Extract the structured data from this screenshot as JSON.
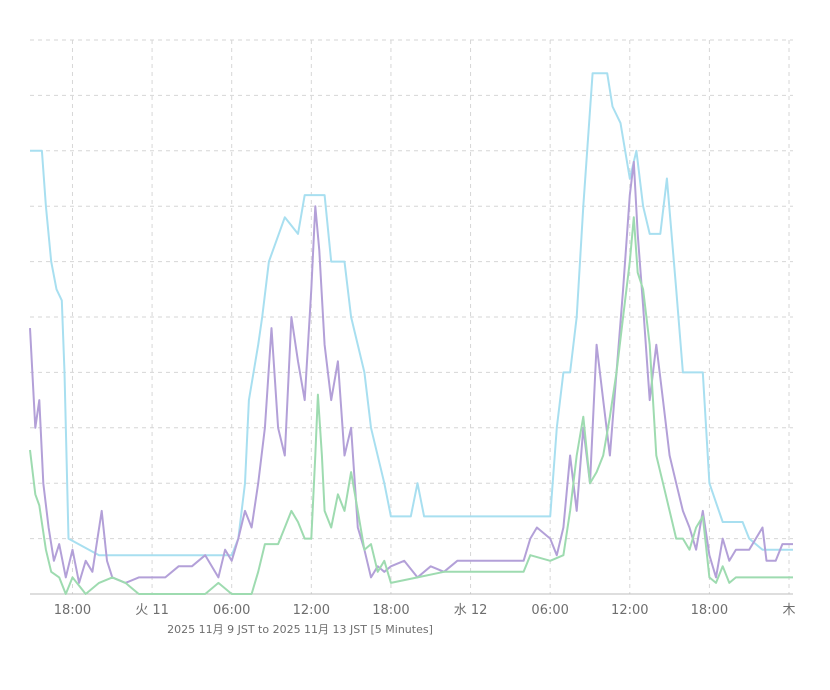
{
  "chart_data": {
    "type": "line",
    "title": "",
    "xlabel": "",
    "ylabel": "",
    "x_unit": "hours since 2025-11-10 18:00 JST",
    "xlim": [
      -3.2,
      54.3
    ],
    "ylim": [
      0,
      10
    ],
    "grid": true,
    "x_ticks": [
      {
        "x": 0,
        "label": "18:00"
      },
      {
        "x": 6,
        "label": "火 11"
      },
      {
        "x": 12,
        "label": "06:00"
      },
      {
        "x": 18,
        "label": "12:00"
      },
      {
        "x": 24,
        "label": "18:00"
      },
      {
        "x": 30,
        "label": "水 12"
      },
      {
        "x": 36,
        "label": "06:00"
      },
      {
        "x": 42,
        "label": "12:00"
      },
      {
        "x": 48,
        "label": "18:00"
      },
      {
        "x": 54,
        "label": "木"
      }
    ],
    "range_label": "2025 11月 9 JST to 2025 11月 13 JST   [5 Minutes]",
    "series": [
      {
        "color": "#a8dff0",
        "points": [
          [
            -3.2,
            8.0
          ],
          [
            -2.3,
            8.0
          ],
          [
            -2.0,
            7.0
          ],
          [
            -1.6,
            6.0
          ],
          [
            -1.2,
            5.5
          ],
          [
            -0.8,
            5.3
          ],
          [
            -0.6,
            4.0
          ],
          [
            -0.3,
            1.0
          ],
          [
            2.0,
            0.7
          ],
          [
            12.0,
            0.7
          ],
          [
            12.5,
            1.0
          ],
          [
            13.0,
            2.0
          ],
          [
            13.3,
            3.5
          ],
          [
            14.0,
            4.5
          ],
          [
            14.3,
            5.0
          ],
          [
            14.8,
            6.0
          ],
          [
            16.0,
            6.8
          ],
          [
            17.0,
            6.5
          ],
          [
            17.5,
            7.2
          ],
          [
            19.0,
            7.2
          ],
          [
            19.5,
            6.0
          ],
          [
            20.5,
            6.0
          ],
          [
            21.0,
            5.0
          ],
          [
            22.0,
            4.0
          ],
          [
            22.5,
            3.0
          ],
          [
            23.5,
            2.0
          ],
          [
            24.0,
            1.4
          ],
          [
            25.5,
            1.4
          ],
          [
            26.0,
            2.0
          ],
          [
            26.5,
            1.4
          ],
          [
            36.0,
            1.4
          ],
          [
            36.5,
            3.0
          ],
          [
            37.0,
            4.0
          ],
          [
            37.5,
            4.0
          ],
          [
            38.0,
            5.0
          ],
          [
            38.5,
            7.0
          ],
          [
            39.2,
            9.4
          ],
          [
            40.3,
            9.4
          ],
          [
            40.7,
            8.8
          ],
          [
            41.3,
            8.5
          ],
          [
            42.0,
            7.5
          ],
          [
            42.5,
            8.0
          ],
          [
            43.0,
            7.0
          ],
          [
            43.5,
            6.5
          ],
          [
            44.3,
            6.5
          ],
          [
            44.8,
            7.5
          ],
          [
            45.5,
            5.5
          ],
          [
            46.0,
            4.0
          ],
          [
            47.5,
            4.0
          ],
          [
            48.0,
            2.0
          ],
          [
            49.0,
            1.3
          ],
          [
            50.5,
            1.3
          ],
          [
            51.0,
            1.0
          ],
          [
            52.0,
            0.8
          ],
          [
            54.3,
            0.8
          ]
        ]
      },
      {
        "color": "#b3a0d8",
        "points": [
          [
            -3.2,
            4.8
          ],
          [
            -2.8,
            3.0
          ],
          [
            -2.5,
            3.5
          ],
          [
            -2.2,
            2.0
          ],
          [
            -1.8,
            1.2
          ],
          [
            -1.4,
            0.6
          ],
          [
            -1.0,
            0.9
          ],
          [
            -0.5,
            0.3
          ],
          [
            0.0,
            0.8
          ],
          [
            0.5,
            0.2
          ],
          [
            1.0,
            0.6
          ],
          [
            1.5,
            0.4
          ],
          [
            2.2,
            1.5
          ],
          [
            2.6,
            0.6
          ],
          [
            3.0,
            0.3
          ],
          [
            4.0,
            0.2
          ],
          [
            5.0,
            0.3
          ],
          [
            7.0,
            0.3
          ],
          [
            8.0,
            0.5
          ],
          [
            9.0,
            0.5
          ],
          [
            10.0,
            0.7
          ],
          [
            11.0,
            0.3
          ],
          [
            11.5,
            0.8
          ],
          [
            12.0,
            0.6
          ],
          [
            12.5,
            1.0
          ],
          [
            13.0,
            1.5
          ],
          [
            13.5,
            1.2
          ],
          [
            14.0,
            2.0
          ],
          [
            14.5,
            3.0
          ],
          [
            15.0,
            4.8
          ],
          [
            15.5,
            3.0
          ],
          [
            16.0,
            2.5
          ],
          [
            16.5,
            5.0
          ],
          [
            17.0,
            4.2
          ],
          [
            17.5,
            3.5
          ],
          [
            18.0,
            5.5
          ],
          [
            18.3,
            7.0
          ],
          [
            18.6,
            6.2
          ],
          [
            19.0,
            4.5
          ],
          [
            19.5,
            3.5
          ],
          [
            20.0,
            4.2
          ],
          [
            20.5,
            2.5
          ],
          [
            21.0,
            3.0
          ],
          [
            21.5,
            1.2
          ],
          [
            22.0,
            0.8
          ],
          [
            22.5,
            0.3
          ],
          [
            23.0,
            0.5
          ],
          [
            23.5,
            0.4
          ],
          [
            24.0,
            0.5
          ],
          [
            25.0,
            0.6
          ],
          [
            26.0,
            0.3
          ],
          [
            27.0,
            0.5
          ],
          [
            28.0,
            0.4
          ],
          [
            29.0,
            0.6
          ],
          [
            30.0,
            0.6
          ],
          [
            31.0,
            0.6
          ],
          [
            32.0,
            0.6
          ],
          [
            34.0,
            0.6
          ],
          [
            34.5,
            1.0
          ],
          [
            35.0,
            1.2
          ],
          [
            36.0,
            1.0
          ],
          [
            36.5,
            0.7
          ],
          [
            37.0,
            1.2
          ],
          [
            37.5,
            2.5
          ],
          [
            38.0,
            1.5
          ],
          [
            38.5,
            3.0
          ],
          [
            39.0,
            2.0
          ],
          [
            39.5,
            4.5
          ],
          [
            40.0,
            3.5
          ],
          [
            40.5,
            2.5
          ],
          [
            41.0,
            4.0
          ],
          [
            41.5,
            5.5
          ],
          [
            42.0,
            7.2
          ],
          [
            42.3,
            7.8
          ],
          [
            42.6,
            6.5
          ],
          [
            43.0,
            5.2
          ],
          [
            43.5,
            3.5
          ],
          [
            44.0,
            4.5
          ],
          [
            44.5,
            3.5
          ],
          [
            45.0,
            2.5
          ],
          [
            45.5,
            2.0
          ],
          [
            46.0,
            1.5
          ],
          [
            46.5,
            1.2
          ],
          [
            47.0,
            0.8
          ],
          [
            47.5,
            1.5
          ],
          [
            48.0,
            0.7
          ],
          [
            48.5,
            0.3
          ],
          [
            49.0,
            1.0
          ],
          [
            49.5,
            0.6
          ],
          [
            50.0,
            0.8
          ],
          [
            51.0,
            0.8
          ],
          [
            52.0,
            1.2
          ],
          [
            52.3,
            0.6
          ],
          [
            53.0,
            0.6
          ],
          [
            53.5,
            0.9
          ],
          [
            54.3,
            0.9
          ]
        ]
      },
      {
        "color": "#9edbb0",
        "points": [
          [
            -3.2,
            2.6
          ],
          [
            -2.8,
            1.8
          ],
          [
            -2.5,
            1.6
          ],
          [
            -2.0,
            0.8
          ],
          [
            -1.6,
            0.4
          ],
          [
            -1.0,
            0.3
          ],
          [
            -0.5,
            0.0
          ],
          [
            0.0,
            0.3
          ],
          [
            1.0,
            0.0
          ],
          [
            2.0,
            0.2
          ],
          [
            3.0,
            0.3
          ],
          [
            4.0,
            0.2
          ],
          [
            5.0,
            0.0
          ],
          [
            10.0,
            0.0
          ],
          [
            11.0,
            0.2
          ],
          [
            12.0,
            0.0
          ],
          [
            13.5,
            0.0
          ],
          [
            14.0,
            0.4
          ],
          [
            14.5,
            0.9
          ],
          [
            15.5,
            0.9
          ],
          [
            16.0,
            1.2
          ],
          [
            16.5,
            1.5
          ],
          [
            17.0,
            1.3
          ],
          [
            17.5,
            1.0
          ],
          [
            18.0,
            1.0
          ],
          [
            18.3,
            2.5
          ],
          [
            18.5,
            3.6
          ],
          [
            18.8,
            2.5
          ],
          [
            19.0,
            1.5
          ],
          [
            19.5,
            1.2
          ],
          [
            20.0,
            1.8
          ],
          [
            20.5,
            1.5
          ],
          [
            21.0,
            2.2
          ],
          [
            21.5,
            1.5
          ],
          [
            22.0,
            0.8
          ],
          [
            22.5,
            0.9
          ],
          [
            23.0,
            0.4
          ],
          [
            23.5,
            0.6
          ],
          [
            24.0,
            0.2
          ],
          [
            26.0,
            0.3
          ],
          [
            28.0,
            0.4
          ],
          [
            30.0,
            0.4
          ],
          [
            34.0,
            0.4
          ],
          [
            34.5,
            0.7
          ],
          [
            36.0,
            0.6
          ],
          [
            37.0,
            0.7
          ],
          [
            37.5,
            1.5
          ],
          [
            38.0,
            2.5
          ],
          [
            38.5,
            3.2
          ],
          [
            39.0,
            2.0
          ],
          [
            39.5,
            2.2
          ],
          [
            40.0,
            2.5
          ],
          [
            40.5,
            3.2
          ],
          [
            41.0,
            4.0
          ],
          [
            41.5,
            5.0
          ],
          [
            42.0,
            6.0
          ],
          [
            42.3,
            6.8
          ],
          [
            42.6,
            5.8
          ],
          [
            43.0,
            5.5
          ],
          [
            43.5,
            4.5
          ],
          [
            44.0,
            2.5
          ],
          [
            44.5,
            2.0
          ],
          [
            45.0,
            1.5
          ],
          [
            45.5,
            1.0
          ],
          [
            46.0,
            1.0
          ],
          [
            46.5,
            0.8
          ],
          [
            47.0,
            1.2
          ],
          [
            47.5,
            1.4
          ],
          [
            48.0,
            0.3
          ],
          [
            48.5,
            0.2
          ],
          [
            49.0,
            0.5
          ],
          [
            49.5,
            0.2
          ],
          [
            50.0,
            0.3
          ],
          [
            54.3,
            0.3
          ]
        ]
      }
    ]
  }
}
